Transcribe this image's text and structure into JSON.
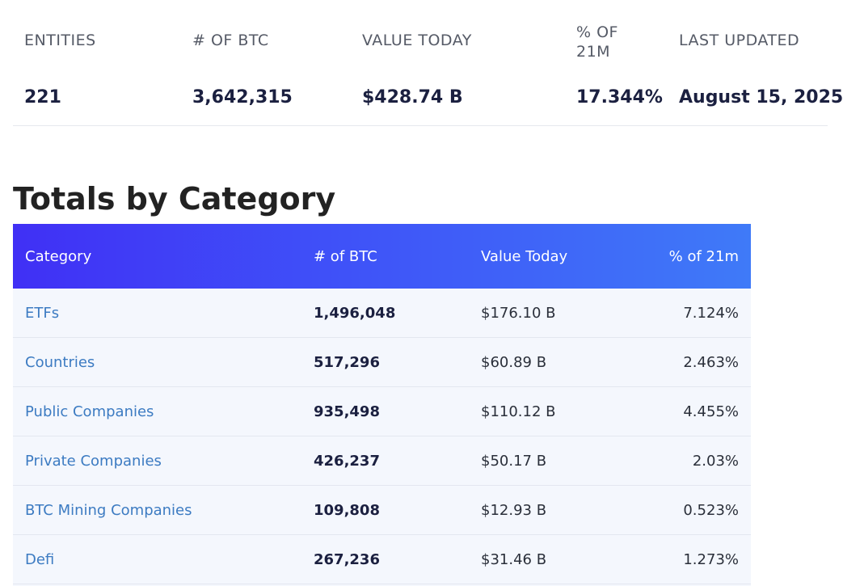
{
  "stats": [
    {
      "label": "ENTITIES",
      "value": "221"
    },
    {
      "label": "# OF BTC",
      "value": "3,642,315"
    },
    {
      "label": "VALUE TODAY",
      "value": "$428.74 B"
    },
    {
      "label": "% OF 21M",
      "value": "17.344%"
    },
    {
      "label": "LAST UPDATED",
      "value": "August 15, 2025"
    }
  ],
  "section_title": "Totals by Category",
  "table": {
    "headers": {
      "category": "Category",
      "btc": "# of BTC",
      "value": "Value Today",
      "pct": "% of 21m"
    },
    "rows": [
      {
        "category": "ETFs",
        "btc": "1,496,048",
        "value": "$176.10 B",
        "pct": "7.124%"
      },
      {
        "category": "Countries",
        "btc": "517,296",
        "value": "$60.89 B",
        "pct": "2.463%"
      },
      {
        "category": "Public Companies",
        "btc": "935,498",
        "value": "$110.12 B",
        "pct": "4.455%"
      },
      {
        "category": "Private Companies",
        "btc": "426,237",
        "value": "$50.17 B",
        "pct": "2.03%"
      },
      {
        "category": "BTC Mining Companies",
        "btc": "109,808",
        "value": "$12.93 B",
        "pct": "0.523%"
      },
      {
        "category": "Defi",
        "btc": "267,236",
        "value": "$31.46 B",
        "pct": "1.273%"
      }
    ]
  },
  "colors": {
    "header_gradient_start": "#4030f5",
    "header_gradient_end": "#3f7af8",
    "category_link": "#3c7bc2",
    "row_background": "#f4f7fd"
  }
}
